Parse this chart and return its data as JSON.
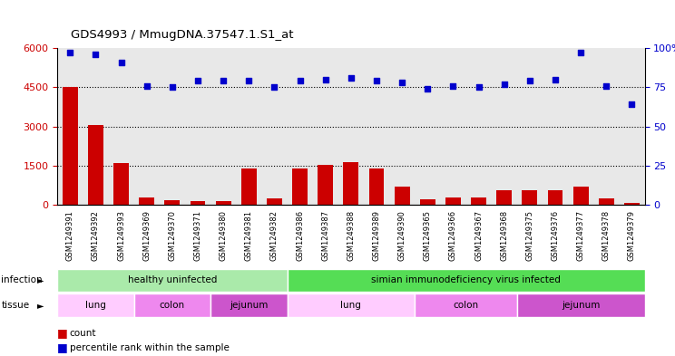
{
  "title": "GDS4993 / MmugDNA.37547.1.S1_at",
  "samples": [
    "GSM1249391",
    "GSM1249392",
    "GSM1249393",
    "GSM1249369",
    "GSM1249370",
    "GSM1249371",
    "GSM1249380",
    "GSM1249381",
    "GSM1249382",
    "GSM1249386",
    "GSM1249387",
    "GSM1249388",
    "GSM1249389",
    "GSM1249390",
    "GSM1249365",
    "GSM1249366",
    "GSM1249367",
    "GSM1249368",
    "GSM1249375",
    "GSM1249376",
    "GSM1249377",
    "GSM1249378",
    "GSM1249379"
  ],
  "counts": [
    4500,
    3050,
    1600,
    280,
    180,
    130,
    130,
    1400,
    230,
    1400,
    1520,
    1620,
    1380,
    700,
    200,
    290,
    290,
    560,
    560,
    560,
    700,
    230,
    80
  ],
  "percentiles": [
    97,
    96,
    91,
    76,
    75,
    79,
    79,
    79,
    75,
    79,
    80,
    81,
    79,
    78,
    74,
    76,
    75,
    77,
    79,
    80,
    97,
    76,
    64
  ],
  "bar_color": "#cc0000",
  "dot_color": "#0000cc",
  "infection_groups": [
    {
      "label": "healthy uninfected",
      "start": 0,
      "end": 9,
      "color": "#aaeaaa"
    },
    {
      "label": "simian immunodeficiency virus infected",
      "start": 9,
      "end": 23,
      "color": "#55dd55"
    }
  ],
  "tissue_colors": {
    "lung": "#ffccff",
    "colon": "#ee88ee",
    "jejunum": "#cc55cc"
  },
  "tissue_groups": [
    {
      "label": "lung",
      "start": 0,
      "end": 3
    },
    {
      "label": "colon",
      "start": 3,
      "end": 6
    },
    {
      "label": "jejunum",
      "start": 6,
      "end": 9
    },
    {
      "label": "lung",
      "start": 9,
      "end": 14
    },
    {
      "label": "colon",
      "start": 14,
      "end": 18
    },
    {
      "label": "jejunum",
      "start": 18,
      "end": 23
    }
  ],
  "ylim_left": [
    0,
    6000
  ],
  "ylim_right": [
    0,
    100
  ],
  "yticks_left": [
    0,
    1500,
    3000,
    4500,
    6000
  ],
  "yticks_right": [
    0,
    25,
    50,
    75,
    100
  ],
  "grid_values": [
    1500,
    3000,
    4500
  ],
  "plot_bg": "#e8e8e8",
  "fig_bg": "#ffffff"
}
